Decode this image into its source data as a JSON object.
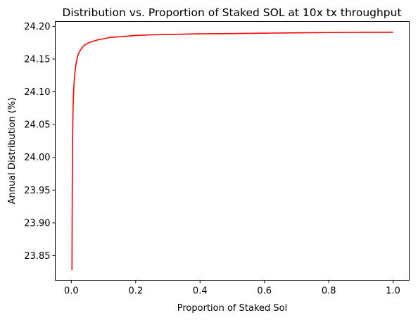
{
  "chart_data": {
    "type": "line",
    "title": "Distribution vs. Proportion of Staked SOL at 10x tx throughput",
    "xlabel": "Proportion of Staked Sol",
    "ylabel": "Annual Distribution (%)",
    "xlim": [
      -0.05,
      1.05
    ],
    "ylim": [
      23.8124,
      24.2074
    ],
    "xticks": [
      {
        "value": 0.0,
        "label": "0.0"
      },
      {
        "value": 0.2,
        "label": "0.2"
      },
      {
        "value": 0.4,
        "label": "0.4"
      },
      {
        "value": 0.6,
        "label": "0.6"
      },
      {
        "value": 0.8,
        "label": "0.8"
      },
      {
        "value": 1.0,
        "label": "1.0"
      }
    ],
    "yticks": [
      {
        "value": 23.85,
        "label": "23.85"
      },
      {
        "value": 23.9,
        "label": "23.90"
      },
      {
        "value": 23.95,
        "label": "23.95"
      },
      {
        "value": 24.0,
        "label": "24.00"
      },
      {
        "value": 24.05,
        "label": "24.05"
      },
      {
        "value": 24.1,
        "label": "24.10"
      },
      {
        "value": 24.15,
        "label": "24.15"
      },
      {
        "value": 24.2,
        "label": "24.20"
      }
    ],
    "grid": false,
    "series": [
      {
        "color": "#ff0000",
        "x": [
          0.002,
          0.003,
          0.004,
          0.005,
          0.006,
          0.008,
          0.01,
          0.012,
          0.015,
          0.02,
          0.025,
          0.03,
          0.04,
          0.05,
          0.06,
          0.08,
          0.1,
          0.12,
          0.15,
          0.2,
          0.25,
          0.3,
          0.4,
          0.5,
          0.6,
          0.7,
          0.8,
          0.9,
          1.0
        ],
        "y": [
          23.828,
          23.965,
          24.028,
          24.066,
          24.087,
          24.109,
          24.123,
          24.133,
          24.144,
          24.155,
          24.161,
          24.165,
          24.171,
          24.174,
          24.176,
          24.179,
          24.181,
          24.183,
          24.184,
          24.186,
          24.187,
          24.1875,
          24.1885,
          24.189,
          24.1895,
          24.19,
          24.1905,
          24.1908,
          24.191
        ]
      }
    ]
  }
}
